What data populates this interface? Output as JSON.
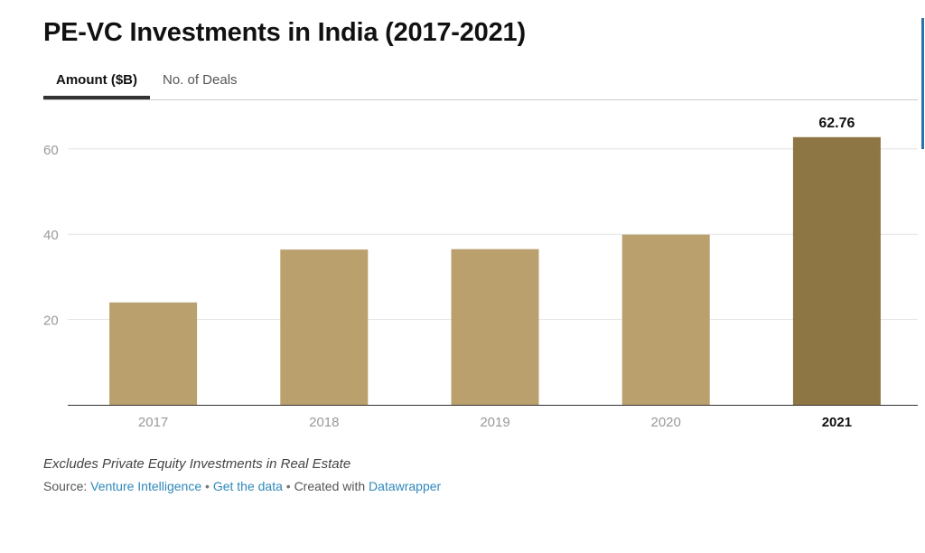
{
  "header": {
    "title": "PE-VC Investments in India (2017-2021)"
  },
  "tabs": [
    {
      "label": "Amount ($B)",
      "active": true
    },
    {
      "label": "No. of Deals",
      "active": false
    }
  ],
  "chart_data": {
    "type": "bar",
    "title": "PE-VC Investments in India (2017-2021)",
    "categories": [
      "2017",
      "2018",
      "2019",
      "2020",
      "2021"
    ],
    "values": [
      24.0,
      36.4,
      36.5,
      39.9,
      62.76
    ],
    "highlight_index": 4,
    "data_labels": {
      "2021": "62.76"
    },
    "ylim": [
      0,
      70
    ],
    "yticks": [
      20,
      40,
      60
    ],
    "grid": true,
    "colors": {
      "bar": "#b9a06c",
      "highlight": "#8d7643",
      "tick_text": "#999999",
      "grid": "#e3e3e3",
      "axis": "#333333"
    }
  },
  "footer": {
    "note": "Excludes Private Equity Investments in Real Estate",
    "source_prefix": "Source:",
    "source_link": "Venture Intelligence",
    "separator": "•",
    "get_data": "Get the data",
    "created_with": "Created with",
    "tool": "Datawrapper"
  }
}
